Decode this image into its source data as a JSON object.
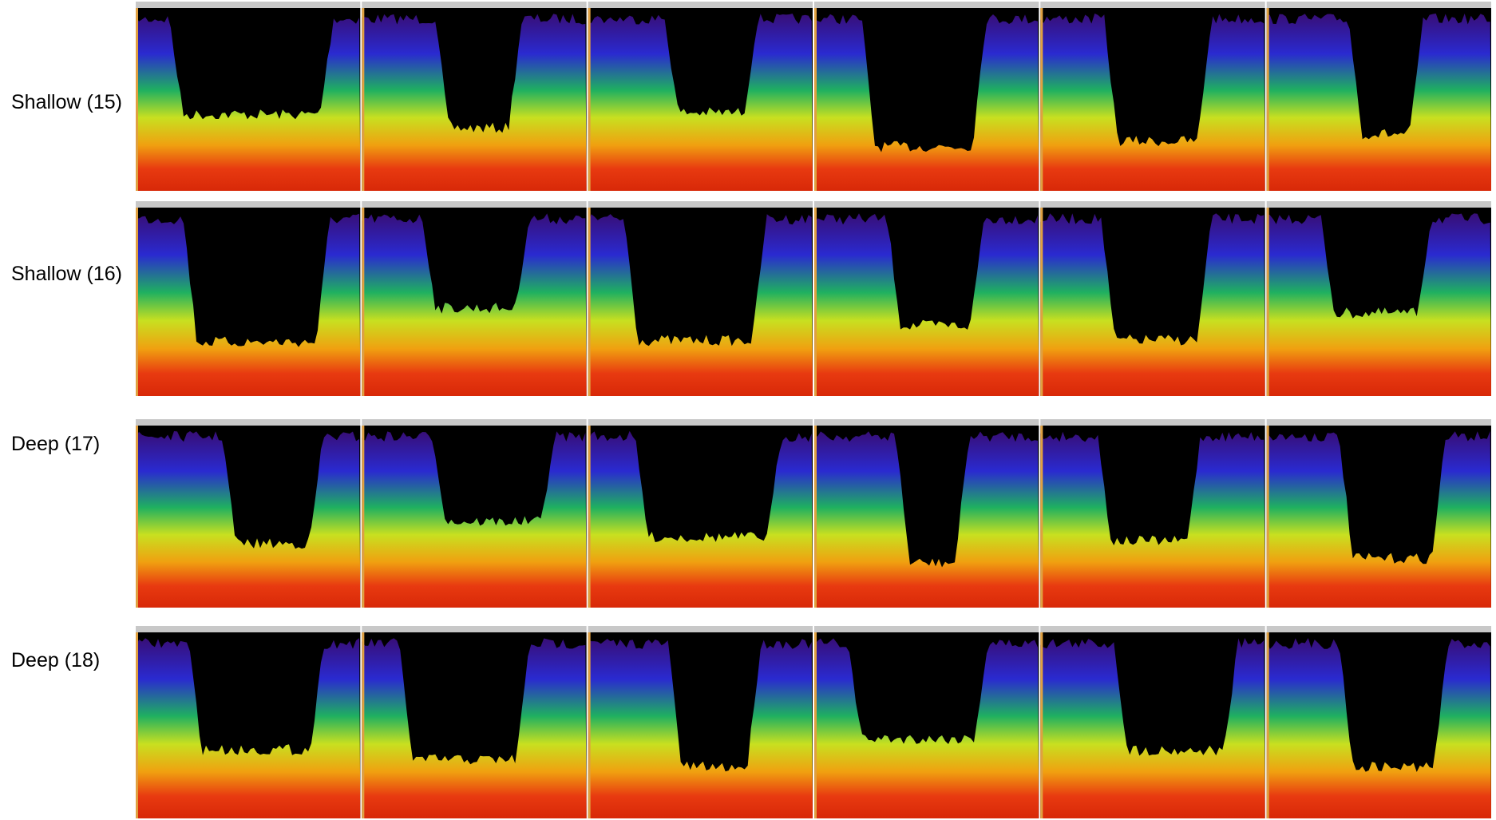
{
  "rows": [
    {
      "label": "Shallow (15)"
    },
    {
      "label": "Shallow (16)"
    },
    {
      "label": "Deep (17)"
    },
    {
      "label": "Deep (18)"
    }
  ]
}
